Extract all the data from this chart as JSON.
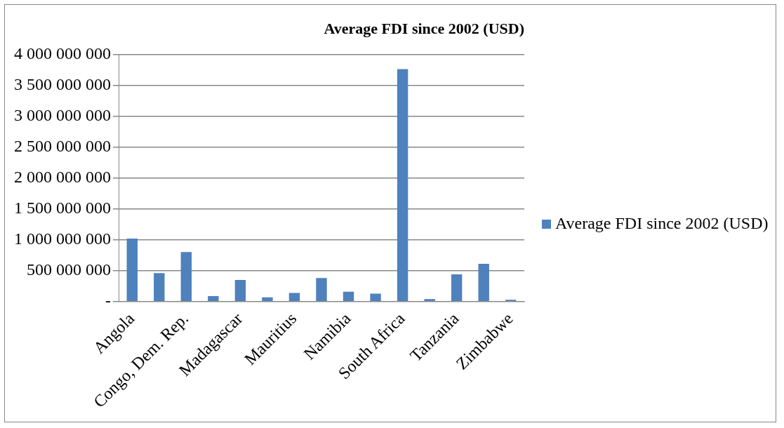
{
  "chart_data": {
    "type": "bar",
    "title": "Average FDI since 2002 (USD)",
    "categories": [
      "Angola",
      null,
      "Congo, Dem. Rep.",
      null,
      "Madagascar",
      null,
      "Mauritius",
      null,
      "Namibia",
      null,
      "South Africa",
      null,
      "Tanzania",
      null,
      "Zimbabwe"
    ],
    "series": [
      {
        "name": "Average FDI since 2002 (USD)",
        "color": "#4f81bd",
        "values": [
          1020000000,
          460000000,
          800000000,
          90000000,
          350000000,
          70000000,
          140000000,
          380000000,
          160000000,
          130000000,
          3760000000,
          40000000,
          440000000,
          610000000,
          30000000
        ]
      }
    ],
    "ylim": [
      0,
      4000000000
    ],
    "yticks": [
      {
        "value": 0,
        "label": "-"
      },
      {
        "value": 500000000,
        "label": "500 000 000"
      },
      {
        "value": 1000000000,
        "label": "1 000 000 000"
      },
      {
        "value": 1500000000,
        "label": "1 500 000 000"
      },
      {
        "value": 2000000000,
        "label": "2 000 000 000"
      },
      {
        "value": 2500000000,
        "label": "2 500 000 000"
      },
      {
        "value": 3000000000,
        "label": "3 000 000 000"
      },
      {
        "value": 3500000000,
        "label": "3 500 000 000"
      },
      {
        "value": 4000000000,
        "label": "4 000 000 000"
      }
    ],
    "grid": "y",
    "legend": "right"
  }
}
